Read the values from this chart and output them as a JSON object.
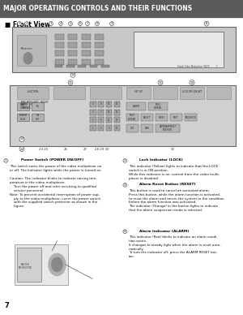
{
  "title": "MAJOR OPERATING CONTROLS AND THEIR FUNCTIONS",
  "title_bg": "#5a5a5a",
  "title_fg": "#ffffff",
  "section_label": "■ Front View",
  "page_number": "7",
  "bg_color": "#ffffff",
  "device_bg": "#d8d8d8",
  "device_border": "#888888",
  "device2_bg": "#e0e0e0"
}
